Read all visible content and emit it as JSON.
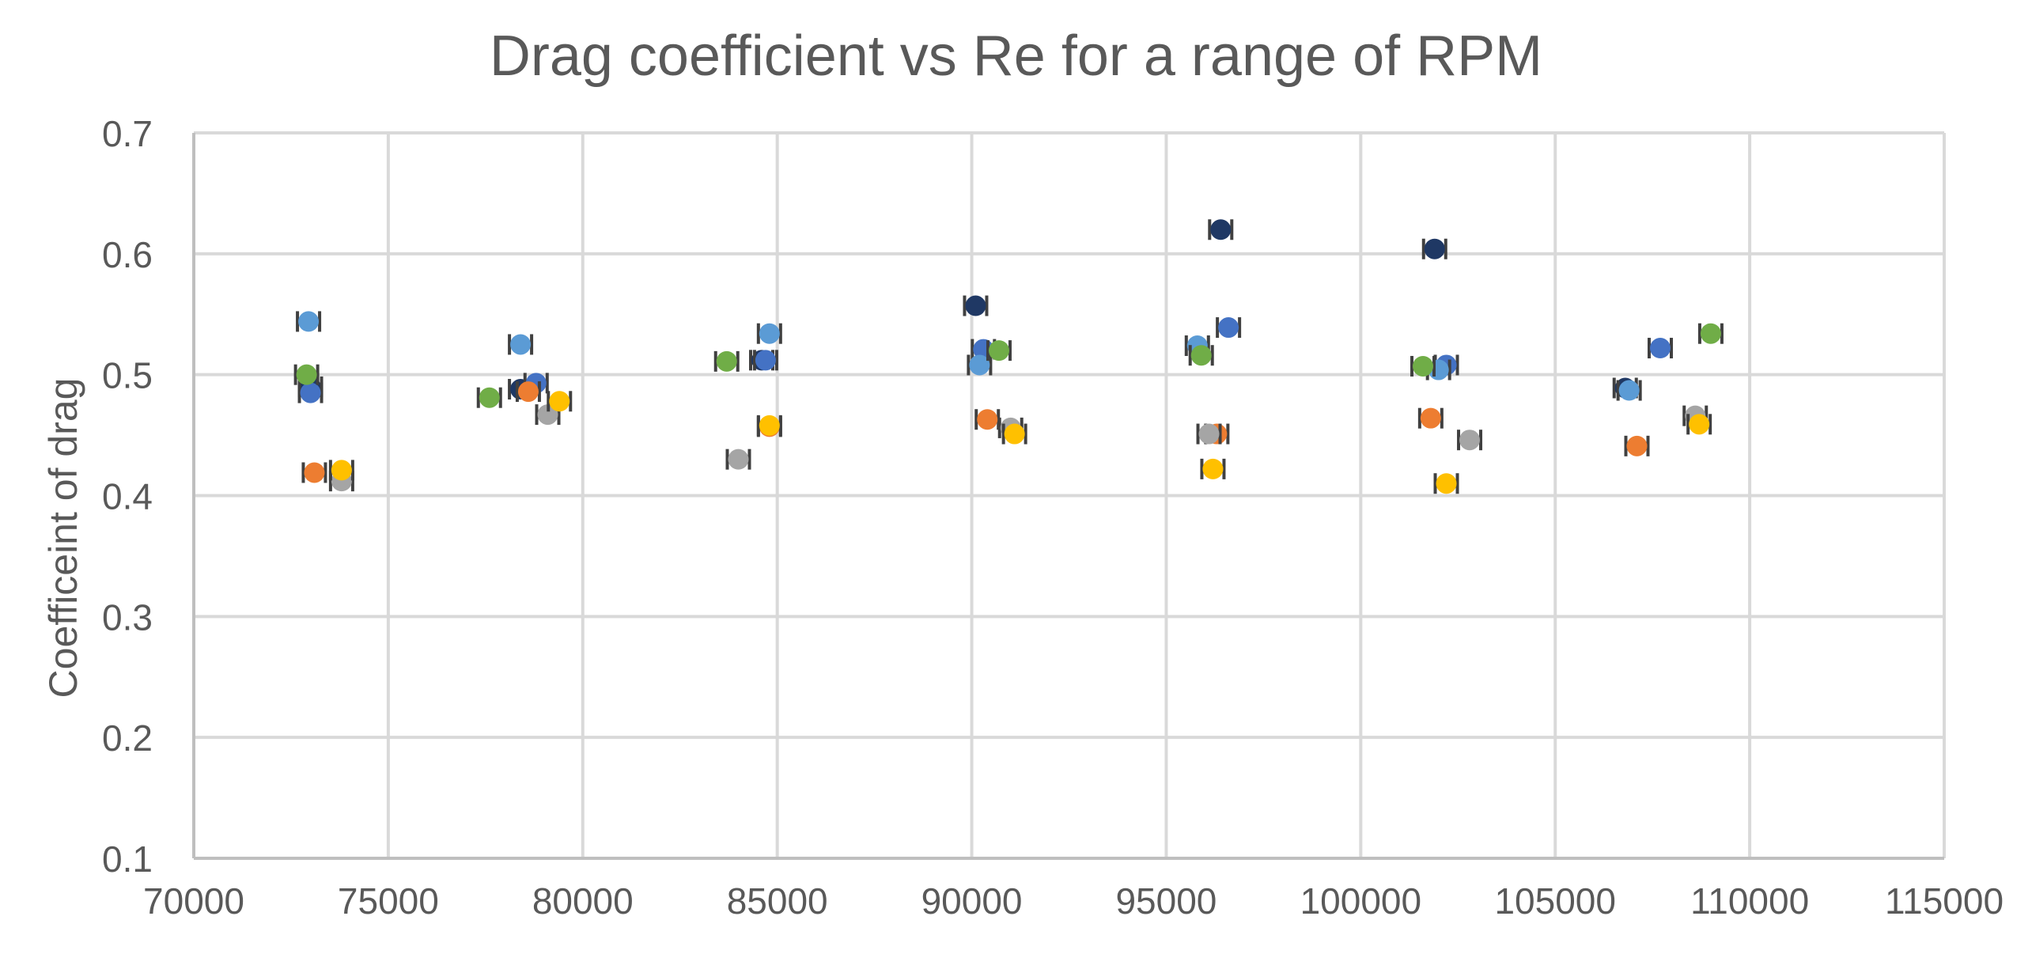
{
  "chart_data": {
    "type": "scatter",
    "title": "Drag coefficient vs Re for a range of RPM",
    "xlabel": "",
    "ylabel": "Coefficeint of drag",
    "xlim": [
      70000,
      115000
    ],
    "ylim": [
      0.1,
      0.7
    ],
    "x_ticks": [
      70000,
      75000,
      80000,
      85000,
      90000,
      95000,
      100000,
      105000,
      110000,
      115000
    ],
    "y_ticks": [
      0.1,
      0.2,
      0.3,
      0.4,
      0.5,
      0.6,
      0.7
    ],
    "grid": true,
    "error_bars": "horizontal",
    "series": [
      {
        "color": "#1F3864",
        "points": [
          [
            73000,
            0.49
          ],
          [
            78400,
            0.488
          ],
          [
            84600,
            0.512
          ],
          [
            90100,
            0.557
          ],
          [
            96400,
            0.62
          ],
          [
            101900,
            0.604
          ],
          [
            106800,
            0.489
          ]
        ]
      },
      {
        "color": "#4472C4",
        "points": [
          [
            73000,
            0.485
          ],
          [
            78800,
            0.493
          ],
          [
            84700,
            0.512
          ],
          [
            90300,
            0.521
          ],
          [
            96600,
            0.539
          ],
          [
            102200,
            0.508
          ],
          [
            107700,
            0.522
          ]
        ]
      },
      {
        "color": "#5B9BD5",
        "points": [
          [
            72950,
            0.544
          ],
          [
            78400,
            0.525
          ],
          [
            84800,
            0.534
          ],
          [
            90200,
            0.508
          ],
          [
            95800,
            0.524
          ],
          [
            102000,
            0.504
          ],
          [
            106900,
            0.487
          ]
        ]
      },
      {
        "color": "#70AD47",
        "points": [
          [
            72900,
            0.5
          ],
          [
            77600,
            0.481
          ],
          [
            83700,
            0.511
          ],
          [
            90700,
            0.52
          ],
          [
            95900,
            0.516
          ],
          [
            101600,
            0.507
          ],
          [
            109000,
            0.534
          ]
        ]
      },
      {
        "color": "#ED7D31",
        "points": [
          [
            73100,
            0.419
          ],
          [
            78600,
            0.486
          ],
          [
            84800,
            0.457
          ],
          [
            90400,
            0.463
          ],
          [
            96300,
            0.451
          ],
          [
            101800,
            0.464
          ],
          [
            107100,
            0.441
          ]
        ]
      },
      {
        "color": "#A5A5A5",
        "points": [
          [
            73800,
            0.412
          ],
          [
            79100,
            0.467
          ],
          [
            84000,
            0.43
          ],
          [
            91000,
            0.456
          ],
          [
            96100,
            0.451
          ],
          [
            102800,
            0.446
          ],
          [
            108600,
            0.466
          ]
        ]
      },
      {
        "color": "#FFC000",
        "points": [
          [
            73800,
            0.421
          ],
          [
            79400,
            0.478
          ],
          [
            84800,
            0.458
          ],
          [
            91100,
            0.451
          ],
          [
            96200,
            0.422
          ],
          [
            102200,
            0.41
          ],
          [
            108700,
            0.459
          ]
        ]
      }
    ]
  }
}
